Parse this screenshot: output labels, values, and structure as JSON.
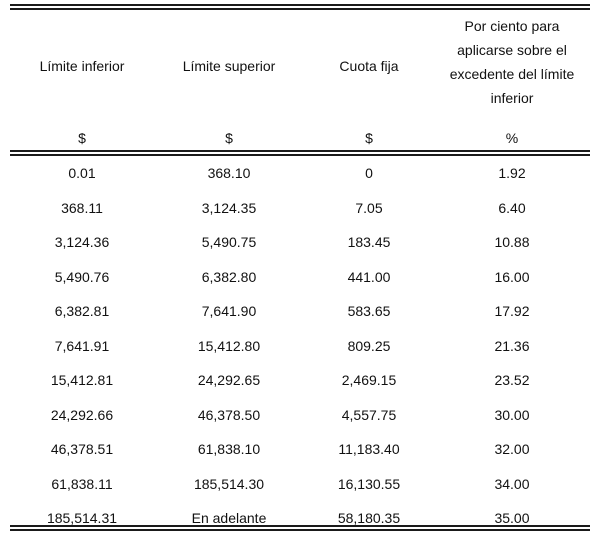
{
  "table": {
    "headers": {
      "lower_limit": "Límite inferior",
      "upper_limit": "Límite superior",
      "fixed_fee": "Cuota fija",
      "percent_lines": [
        "Por ciento para",
        "aplicarse sobre el",
        "excedente del límite",
        "inferior"
      ]
    },
    "units": {
      "lower_limit": "$",
      "upper_limit": "$",
      "fixed_fee": "$",
      "percent": "%"
    },
    "rows": [
      [
        "0.01",
        "368.10",
        "0",
        "1.92"
      ],
      [
        "368.11",
        "3,124.35",
        "7.05",
        "6.40"
      ],
      [
        "3,124.36",
        "5,490.75",
        "183.45",
        "10.88"
      ],
      [
        "5,490.76",
        "6,382.80",
        "441.00",
        "16.00"
      ],
      [
        "6,382.81",
        "7,641.90",
        "583.65",
        "17.92"
      ],
      [
        "7,641.91",
        "15,412.80",
        "809.25",
        "21.36"
      ],
      [
        "15,412.81",
        "24,292.65",
        "2,469.15",
        "23.52"
      ],
      [
        "24,292.66",
        "46,378.50",
        "4,557.75",
        "30.00"
      ],
      [
        "46,378.51",
        "61,838.10",
        "11,183.40",
        "32.00"
      ],
      [
        "61,838.11",
        "185,514.30",
        "16,130.55",
        "34.00"
      ],
      [
        "185,514.31",
        "En adelante",
        "58,180.35",
        "35.00"
      ]
    ]
  }
}
